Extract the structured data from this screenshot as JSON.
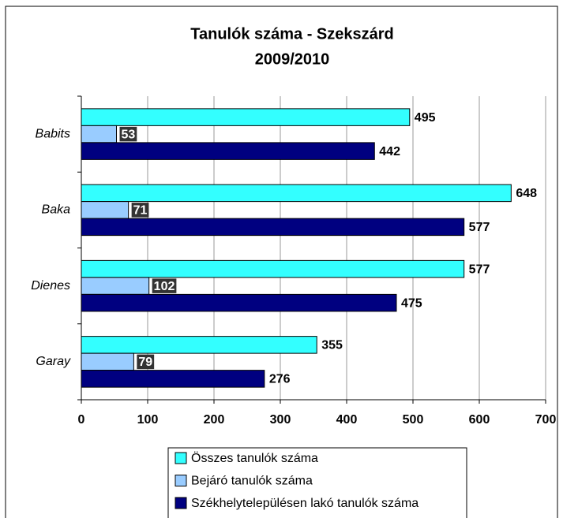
{
  "chart_data": {
    "type": "hbar",
    "title": "Tanulók száma - Szekszárd",
    "subtitle": "2009/2010",
    "categories": [
      "Babits",
      "Baka",
      "Dienes",
      "Garay"
    ],
    "series": [
      {
        "name": "Összes tanulók száma",
        "color": "#33ffff",
        "values": [
          495,
          648,
          577,
          355
        ]
      },
      {
        "name": "Bejáró tanulók száma",
        "color": "#99ccff",
        "values": [
          53,
          71,
          102,
          79
        ]
      },
      {
        "name": "Székhelytelepülésen lakó tanulók száma",
        "color": "#000080",
        "values": [
          442,
          577,
          475,
          276
        ]
      }
    ],
    "xlim": [
      0,
      700
    ],
    "xticks": [
      0,
      100,
      200,
      300,
      400,
      500,
      600,
      700
    ],
    "grid": true
  }
}
